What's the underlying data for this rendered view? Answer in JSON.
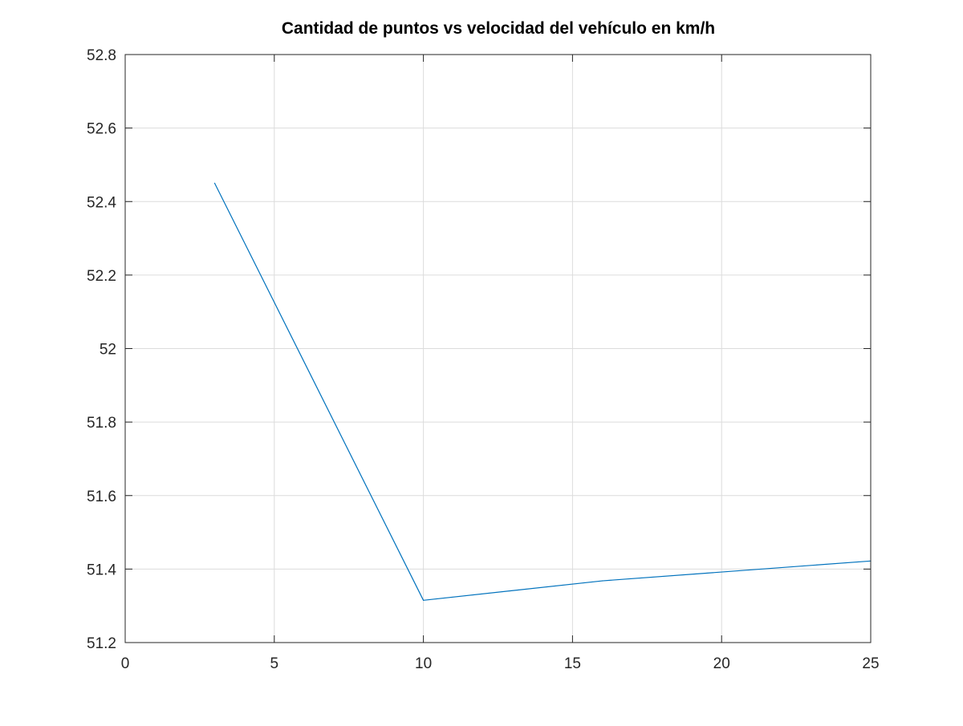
{
  "chart_data": {
    "type": "line",
    "title": "Cantidad de puntos vs velocidad del vehículo en km/h",
    "xlabel": "",
    "ylabel": "",
    "xlim": [
      0,
      25
    ],
    "ylim": [
      51.2,
      52.8
    ],
    "xticks": [
      0,
      5,
      10,
      15,
      20,
      25
    ],
    "xtick_labels": [
      "0",
      "5",
      "10",
      "15",
      "20",
      "25"
    ],
    "yticks": [
      51.2,
      51.4,
      51.6,
      51.8,
      52.0,
      52.2,
      52.4,
      52.6,
      52.8
    ],
    "ytick_labels": [
      "51.2",
      "51.4",
      "51.6",
      "51.8",
      "52",
      "52.2",
      "52.4",
      "52.6",
      "52.8"
    ],
    "grid": true,
    "legend": "none",
    "series": [
      {
        "color": "#0072bd",
        "x": [
          3,
          10,
          16,
          25
        ],
        "y": [
          52.45,
          51.315,
          51.368,
          51.422
        ]
      }
    ]
  }
}
